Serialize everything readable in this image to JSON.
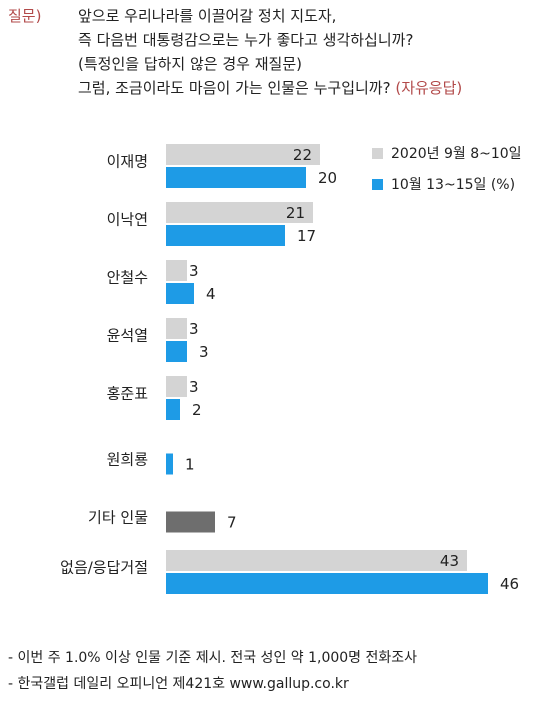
{
  "question": {
    "label": "질문)",
    "lines": [
      "앞으로 우리나라를 이끌어갈 정치 지도자,",
      "즉 다음번 대통령감으로는 누가 좋다고 생각하십니까?",
      "(특정인을 답하지 않은 경우 재질문)",
      "그럼, 조금이라도 마음이 가는 인물은 누구입니까?"
    ],
    "accent": "(자유응답)"
  },
  "chart_data": {
    "type": "bar",
    "orientation": "horizontal",
    "categories": [
      "이재명",
      "이낙연",
      "안철수",
      "윤석열",
      "홍준표",
      "원희룡",
      "기타 인물",
      "없음/응답거절"
    ],
    "series": [
      {
        "name": "2020년 9월 8~10일",
        "color": "#d4d4d4",
        "values": [
          22,
          21,
          3,
          3,
          3,
          null,
          null,
          43
        ]
      },
      {
        "name": "10월 13~15일 (%)",
        "color": "#1e9be6",
        "values": [
          20,
          17,
          4,
          3,
          2,
          1,
          7,
          46
        ]
      }
    ],
    "highlight": {
      "category": "기타 인물",
      "color": "#6e6e6e"
    },
    "legend_position": "top-right",
    "grid": false,
    "xlim": [
      0,
      50
    ]
  },
  "footer": [
    "- 이번 주 1.0% 이상 인물 기준 제시. 전국 성인 약 1,000명 전화조사",
    "- 한국갤럽 데일리 오피니언 제421호 www.gallup.co.kr"
  ]
}
